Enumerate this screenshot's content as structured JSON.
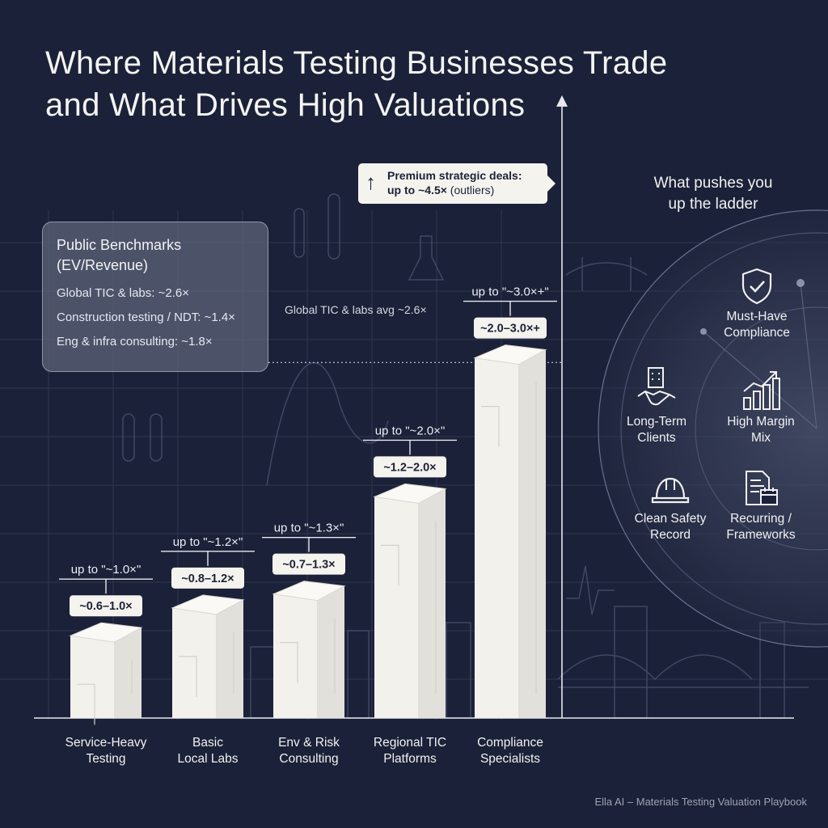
{
  "title_lines": [
    "Where Materials Testing Businesses Trade",
    "and What Drives High Valuations"
  ],
  "benchmarks": {
    "title_lines": [
      "Public Benchmarks",
      "(EV/Revenue)"
    ],
    "items": [
      "Global TIC & labs: ~2.6×",
      "Construction testing / NDT: ~1.4×",
      "Eng & infra consulting: ~1.8×"
    ]
  },
  "callout": {
    "line1": "Premium strategic deals:",
    "line2_bold": "up to ~4.5×",
    "line2_rest": " (outliers)"
  },
  "avg_line": {
    "label": "Global TIC & labs avg ~2.6×",
    "value": 2.6
  },
  "drivers": {
    "title_lines": [
      "What pushes you",
      "up the ladder"
    ],
    "items": [
      {
        "label_lines": [
          "Must-Have",
          "Compliance"
        ],
        "icon": "shield-check-icon"
      },
      {
        "label_lines": [
          "Long-Term",
          "Clients"
        ],
        "icon": "handshake-building-icon"
      },
      {
        "label_lines": [
          "High Margin",
          "Mix"
        ],
        "icon": "rising-bar-chart-icon"
      },
      {
        "label_lines": [
          "Clean Safety",
          "Record"
        ],
        "icon": "hard-hat-icon"
      },
      {
        "label_lines": [
          "Recurring /",
          "Frameworks"
        ],
        "icon": "document-calendar-icon"
      }
    ]
  },
  "footer": "Ella AI – Materials Testing Valuation Playbook",
  "colors": {
    "background": "#1b2138",
    "bar": "#f3f1ec",
    "label_bg": "#f5f3ee",
    "text": "#f2f2f2"
  },
  "chart_data": {
    "type": "bar",
    "categories": [
      [
        "Service-Heavy",
        "Testing"
      ],
      [
        "Basic",
        "Local Labs"
      ],
      [
        "Env & Risk",
        "Consulting"
      ],
      [
        "Regional TIC",
        "Platforms"
      ],
      [
        "Compliance",
        "Specialists"
      ]
    ],
    "range_labels": [
      "~0.6–1.0×",
      "~0.8–1.2×",
      "~0.7–1.3×",
      "~1.2–2.0×",
      "~2.0–3.0×+"
    ],
    "upper_labels": [
      "up to \"~1.0×\"",
      "up to \"~1.2×\"",
      "up to \"~1.3×\"",
      "up to \"~2.0×\"",
      "up to \"~3.0×+\""
    ],
    "low": [
      0.6,
      0.8,
      0.7,
      1.2,
      2.0
    ],
    "high": [
      1.0,
      1.2,
      1.3,
      2.0,
      3.0
    ],
    "reference_line": 2.6,
    "max_marker": 4.5
  }
}
